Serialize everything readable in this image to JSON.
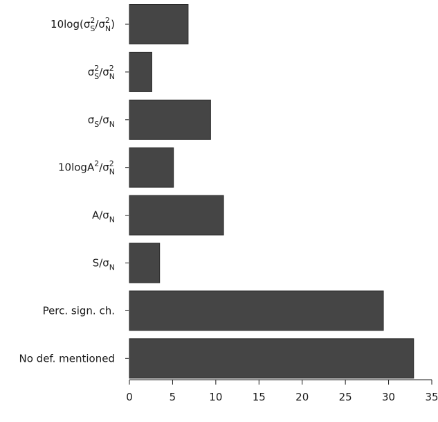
{
  "chart_data": {
    "type": "bar",
    "orientation": "horizontal",
    "categories": [
      {
        "id": "log-ratio",
        "label": "10log(σ_S²/σ_N²)",
        "parts": [
          [
            "t",
            "10log("
          ],
          [
            "t",
            "σ"
          ],
          [
            "sup",
            "2"
          ],
          [
            "sub",
            "S"
          ],
          [
            "t",
            "/σ"
          ],
          [
            "sup",
            "2"
          ],
          [
            "sub",
            "N"
          ],
          [
            "t",
            ")"
          ]
        ]
      },
      {
        "id": "var-ratio",
        "label": "σ_S²/σ_N²",
        "parts": [
          [
            "t",
            "σ"
          ],
          [
            "sup",
            "2"
          ],
          [
            "sub",
            "S"
          ],
          [
            "t",
            "/σ"
          ],
          [
            "sup",
            "2"
          ],
          [
            "sub",
            "N"
          ]
        ]
      },
      {
        "id": "std-ratio",
        "label": "σ_S/σ_N",
        "parts": [
          [
            "t",
            "σ"
          ],
          [
            "sub",
            "S"
          ],
          [
            "t",
            "/σ"
          ],
          [
            "sub",
            "N"
          ]
        ]
      },
      {
        "id": "log-a-ratio",
        "label": "10logA²/σ_N²",
        "parts": [
          [
            "t",
            "10logA"
          ],
          [
            "sup",
            "2"
          ],
          [
            "t",
            "/σ"
          ],
          [
            "sup",
            "2"
          ],
          [
            "sub",
            "N"
          ]
        ]
      },
      {
        "id": "a-ratio",
        "label": "A/σ_N",
        "parts": [
          [
            "t",
            "A/σ"
          ],
          [
            "sub",
            "N"
          ]
        ]
      },
      {
        "id": "s-ratio",
        "label": "S/σ_N",
        "parts": [
          [
            "t",
            "S/σ"
          ],
          [
            "sub",
            "N"
          ]
        ]
      },
      {
        "id": "perc-sign",
        "label": "Perc. sign. ch.",
        "parts": [
          [
            "t",
            "Perc. sign. ch."
          ]
        ]
      },
      {
        "id": "no-def",
        "label": "No def. mentioned",
        "parts": [
          [
            "t",
            "No def. mentioned"
          ]
        ]
      }
    ],
    "values": [
      6.8,
      2.6,
      9.4,
      5.1,
      10.9,
      3.5,
      29.4,
      32.9
    ],
    "xlim": [
      0,
      35
    ],
    "xticks": [
      0,
      5,
      10,
      15,
      20,
      25,
      30,
      35
    ],
    "title": "",
    "xlabel": "",
    "ylabel": "",
    "grid": false,
    "legend": "none",
    "bar_color": "#454545",
    "bar_edge_color": "#2a2a2a",
    "axis_color": "#1a1a1a"
  }
}
